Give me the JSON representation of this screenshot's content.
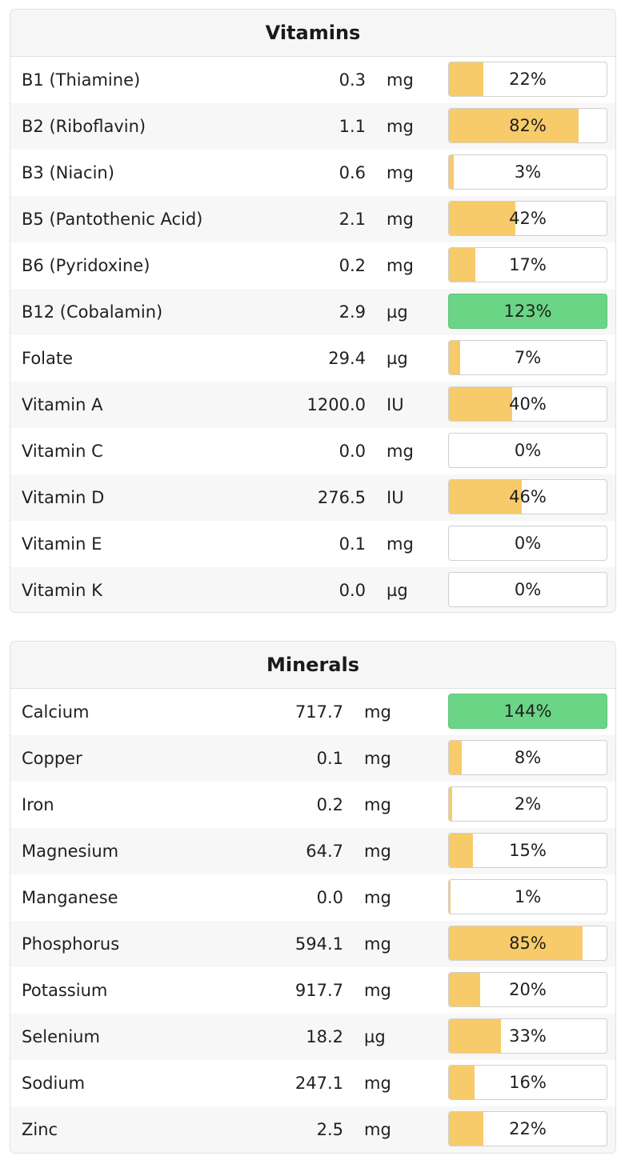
{
  "vitamins": {
    "title": "Vitamins",
    "rows": [
      {
        "name": "B1 (Thiamine)",
        "amount": "0.3",
        "unit": "mg",
        "pct_label": "22%",
        "pct": 22
      },
      {
        "name": "B2 (Riboflavin)",
        "amount": "1.1",
        "unit": "mg",
        "pct_label": "82%",
        "pct": 82
      },
      {
        "name": "B3 (Niacin)",
        "amount": "0.6",
        "unit": "mg",
        "pct_label": "3%",
        "pct": 3
      },
      {
        "name": "B5 (Pantothenic Acid)",
        "amount": "2.1",
        "unit": "mg",
        "pct_label": "42%",
        "pct": 42
      },
      {
        "name": "B6 (Pyridoxine)",
        "amount": "0.2",
        "unit": "mg",
        "pct_label": "17%",
        "pct": 17
      },
      {
        "name": "B12 (Cobalamin)",
        "amount": "2.9",
        "unit": "µg",
        "pct_label": "123%",
        "pct": 123
      },
      {
        "name": "Folate",
        "amount": "29.4",
        "unit": "µg",
        "pct_label": "7%",
        "pct": 7
      },
      {
        "name": "Vitamin A",
        "amount": "1200.0",
        "unit": "IU",
        "pct_label": "40%",
        "pct": 40
      },
      {
        "name": "Vitamin C",
        "amount": "0.0",
        "unit": "mg",
        "pct_label": "0%",
        "pct": 0
      },
      {
        "name": "Vitamin D",
        "amount": "276.5",
        "unit": "IU",
        "pct_label": "46%",
        "pct": 46
      },
      {
        "name": "Vitamin E",
        "amount": "0.1",
        "unit": "mg",
        "pct_label": "0%",
        "pct": 0
      },
      {
        "name": "Vitamin K",
        "amount": "0.0",
        "unit": "µg",
        "pct_label": "0%",
        "pct": 0
      }
    ]
  },
  "minerals": {
    "title": "Minerals",
    "rows": [
      {
        "name": "Calcium",
        "amount": "717.7",
        "unit": "mg",
        "pct_label": "144%",
        "pct": 144
      },
      {
        "name": "Copper",
        "amount": "0.1",
        "unit": "mg",
        "pct_label": "8%",
        "pct": 8
      },
      {
        "name": "Iron",
        "amount": "0.2",
        "unit": "mg",
        "pct_label": "2%",
        "pct": 2
      },
      {
        "name": "Magnesium",
        "amount": "64.7",
        "unit": "mg",
        "pct_label": "15%",
        "pct": 15
      },
      {
        "name": "Manganese",
        "amount": "0.0",
        "unit": "mg",
        "pct_label": "1%",
        "pct": 1
      },
      {
        "name": "Phosphorus",
        "amount": "594.1",
        "unit": "mg",
        "pct_label": "85%",
        "pct": 85
      },
      {
        "name": "Potassium",
        "amount": "917.7",
        "unit": "mg",
        "pct_label": "20%",
        "pct": 20
      },
      {
        "name": "Selenium",
        "amount": "18.2",
        "unit": "µg",
        "pct_label": "33%",
        "pct": 33
      },
      {
        "name": "Sodium",
        "amount": "247.1",
        "unit": "mg",
        "pct_label": "16%",
        "pct": 16
      },
      {
        "name": "Zinc",
        "amount": "2.5",
        "unit": "mg",
        "pct_label": "22%",
        "pct": 22
      }
    ]
  },
  "colors": {
    "partial_fill": "#f8cb6a",
    "full_fill": "#6ad585",
    "header_bg": "#f6f6f6",
    "alt_row_bg": "#f7f7f7"
  }
}
